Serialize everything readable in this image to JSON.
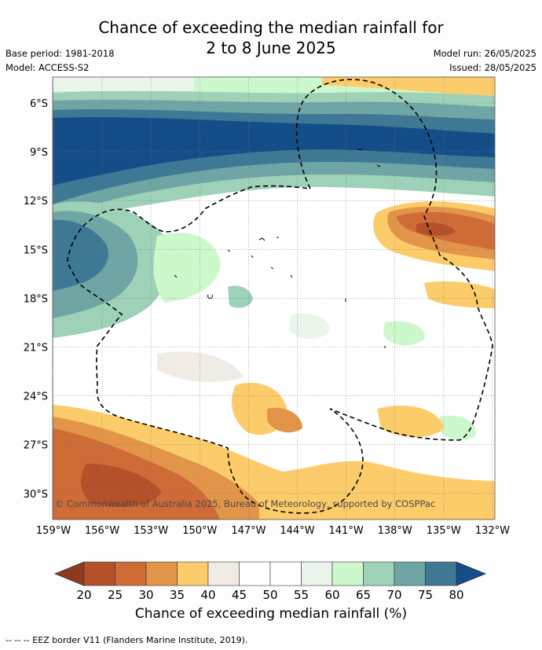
{
  "title": {
    "line1": "Chance of exceeding the median rainfall for",
    "line2": "2 to 8 June 2025"
  },
  "meta": {
    "base_period": "Base period: 1981-2018",
    "model": "Model: ACCESS-S2",
    "model_run": "Model run: 26/05/2025",
    "issued": "Issued: 28/05/2025"
  },
  "map": {
    "lat_ticks": [
      "6°S",
      "9°S",
      "12°S",
      "15°S",
      "18°S",
      "21°S",
      "24°S",
      "27°S",
      "30°S"
    ],
    "lon_ticks": [
      "159°W",
      "156°W",
      "153°W",
      "150°W",
      "147°W",
      "144°W",
      "141°W",
      "138°W",
      "135°W",
      "132°W"
    ],
    "copyright": "© Commonwealth of Australia 2025, Bureau of Meteorology, supported by COSPPac",
    "border_style": "dashed-black"
  },
  "colorbar": {
    "label": "Chance of exceeding median rainfall (%)",
    "ticks": [
      "20",
      "25",
      "30",
      "35",
      "40",
      "45",
      "50",
      "55",
      "60",
      "65",
      "70",
      "75",
      "80"
    ],
    "colors": [
      "#8f3a1e",
      "#b5512a",
      "#cf6b37",
      "#e29548",
      "#fdcc6a",
      "#f1ebe6",
      "#ffffff",
      "#ffffff",
      "#ebf5eb",
      "#ccf8cc",
      "#9dd1b8",
      "#6fa6a5",
      "#3f7895",
      "#144d87"
    ]
  },
  "footnote": "--  --  -- EEZ border V11 (Flanders Marine Institute, 2019)."
}
